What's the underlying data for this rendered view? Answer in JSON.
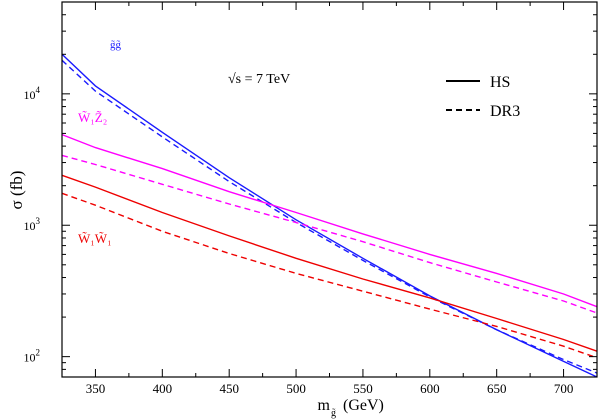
{
  "chart_data": {
    "type": "line",
    "xlabel": "m",
    "xlabel_sub": "g̃",
    "xlabel_unit": "(GeV)",
    "ylabel": "σ (fb)",
    "xlim": [
      325,
      725
    ],
    "ylim": [
      70,
      50000
    ],
    "y_scale": "log",
    "x_ticks": [
      350,
      400,
      450,
      500,
      550,
      600,
      650,
      700
    ],
    "y_ticks": [
      {
        "value": 100,
        "label_base": "10",
        "label_exp": "2"
      },
      {
        "value": 1000,
        "label_base": "10",
        "label_exp": "3"
      },
      {
        "value": 10000,
        "label_base": "10",
        "label_exp": "4"
      }
    ],
    "grid": false,
    "legend": {
      "placement": "top-right",
      "entries": [
        {
          "label": "HS",
          "style": "solid"
        },
        {
          "label": "DR3",
          "style": "dashed"
        }
      ]
    },
    "annotations": {
      "energy": "√s = 7 TeV",
      "gg": "g̃g̃",
      "w1z2": "W̃₁Z̃₂",
      "w1w1": "W̃₁W̃₁"
    },
    "series": [
      {
        "process": "gg",
        "style": "solid",
        "color": "#1a1aff",
        "x": [
          325,
          350,
          400,
          450,
          500,
          550,
          600,
          650,
          700,
          725
        ],
        "y": [
          20000,
          11500,
          5100,
          2300,
          1100,
          560,
          290,
          160,
          92,
          70
        ]
      },
      {
        "process": "gg",
        "style": "dashed",
        "color": "#1a1aff",
        "x": [
          325,
          350,
          400,
          450,
          500,
          550,
          600,
          650,
          700,
          725
        ],
        "y": [
          18000,
          10500,
          4700,
          2150,
          1050,
          540,
          285,
          160,
          95,
          75
        ]
      },
      {
        "process": "w1z2",
        "style": "solid",
        "color": "#ff00ff",
        "x": [
          325,
          350,
          400,
          450,
          500,
          550,
          600,
          650,
          700,
          725
        ],
        "y": [
          4900,
          3900,
          2700,
          1800,
          1250,
          860,
          600,
          430,
          300,
          240
        ]
      },
      {
        "process": "w1z2",
        "style": "dashed",
        "color": "#ff00ff",
        "x": [
          325,
          350,
          400,
          450,
          500,
          550,
          600,
          650,
          700,
          725
        ],
        "y": [
          3400,
          2900,
          2050,
          1450,
          1050,
          750,
          520,
          370,
          265,
          215
        ]
      },
      {
        "process": "w1w1",
        "style": "solid",
        "color": "#ee0000",
        "x": [
          325,
          350,
          400,
          450,
          500,
          550,
          600,
          650,
          700,
          725
        ],
        "y": [
          2400,
          1950,
          1250,
          830,
          560,
          390,
          280,
          195,
          135,
          110
        ]
      },
      {
        "process": "w1w1",
        "style": "dashed",
        "color": "#ee0000",
        "x": [
          325,
          350,
          400,
          450,
          500,
          550,
          600,
          650,
          700,
          725
        ],
        "y": [
          1750,
          1420,
          900,
          610,
          430,
          315,
          230,
          170,
          120,
          98
        ]
      }
    ]
  }
}
